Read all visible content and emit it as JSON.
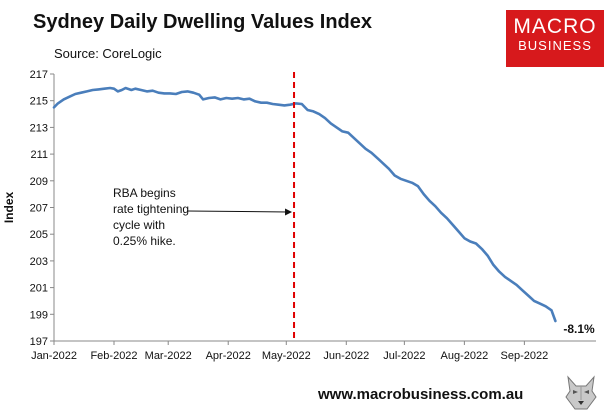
{
  "header": {
    "title": "Sydney Daily Dwelling Values Index",
    "source": "Source: CoreLogic"
  },
  "logo": {
    "line1": "MACRO",
    "line2": "BUSINESS"
  },
  "footer": {
    "url": "www.macrobusiness.com.au",
    "wolf_icon": "wolf-icon"
  },
  "chart_data": {
    "type": "line",
    "title": "Sydney Daily Dwelling Values Index",
    "xlabel": "",
    "ylabel": "Index",
    "ylim": [
      197,
      217
    ],
    "yticks": [
      197,
      199,
      201,
      203,
      205,
      207,
      209,
      211,
      213,
      215,
      217
    ],
    "xlim_days": [
      0,
      280
    ],
    "xticks": [
      {
        "label": "Jan-2022",
        "day": 0
      },
      {
        "label": "Feb-2022",
        "day": 31
      },
      {
        "label": "Mar-2022",
        "day": 59
      },
      {
        "label": "Apr-2022",
        "day": 90
      },
      {
        "label": "May-2022",
        "day": 120
      },
      {
        "label": "Jun-2022",
        "day": 151
      },
      {
        "label": "Jul-2022",
        "day": 181
      },
      {
        "label": "Aug-2022",
        "day": 212
      },
      {
        "label": "Sep-2022",
        "day": 243
      }
    ],
    "series": [
      {
        "name": "Sydney Daily Dwelling Values Index",
        "color": "#4a7ebb",
        "x": [
          0,
          2,
          5,
          8,
          11,
          14,
          17,
          20,
          23,
          26,
          29,
          31,
          33,
          35,
          37,
          40,
          42,
          45,
          48,
          51,
          54,
          57,
          60,
          63,
          66,
          69,
          72,
          75,
          77,
          80,
          83,
          86,
          89,
          92,
          95,
          98,
          101,
          104,
          107,
          110,
          113,
          116,
          119,
          122,
          125,
          128,
          131,
          134,
          137,
          140,
          143,
          146,
          149,
          152,
          155,
          158,
          161,
          164,
          167,
          170,
          173,
          176,
          179,
          182,
          185,
          188,
          191,
          194,
          197,
          200,
          203,
          206,
          209,
          212,
          215,
          218,
          221,
          224,
          227,
          230,
          233,
          236,
          239,
          242,
          245,
          248,
          251,
          254,
          257,
          259
        ],
        "values": [
          214.5,
          214.8,
          215.1,
          215.3,
          215.5,
          215.6,
          215.7,
          215.8,
          215.85,
          215.9,
          215.95,
          215.9,
          215.7,
          215.8,
          215.95,
          215.8,
          215.9,
          215.8,
          215.7,
          215.75,
          215.6,
          215.55,
          215.55,
          215.5,
          215.65,
          215.7,
          215.6,
          215.45,
          215.1,
          215.2,
          215.25,
          215.1,
          215.2,
          215.15,
          215.2,
          215.1,
          215.15,
          214.95,
          214.85,
          214.85,
          214.75,
          214.7,
          214.65,
          214.7,
          214.8,
          214.75,
          214.3,
          214.2,
          214.0,
          213.7,
          213.3,
          213.0,
          212.7,
          212.6,
          212.2,
          211.8,
          211.4,
          211.1,
          210.7,
          210.3,
          209.9,
          209.4,
          209.15,
          209.0,
          208.85,
          208.6,
          208.0,
          207.5,
          207.1,
          206.6,
          206.2,
          205.7,
          205.2,
          204.7,
          204.45,
          204.3,
          203.9,
          203.4,
          202.7,
          202.2,
          201.8,
          201.5,
          201.2,
          200.8,
          200.4,
          200.0,
          199.8,
          199.6,
          199.3,
          198.5
        ]
      }
    ],
    "annotations": {
      "vertical_line": {
        "day": 124,
        "color": "#e00000",
        "style": "dashed"
      },
      "rba_text": [
        "RBA begins",
        "rate tightening",
        "cycle with",
        "0.25% hike."
      ],
      "end_label": "-8.1%"
    }
  }
}
